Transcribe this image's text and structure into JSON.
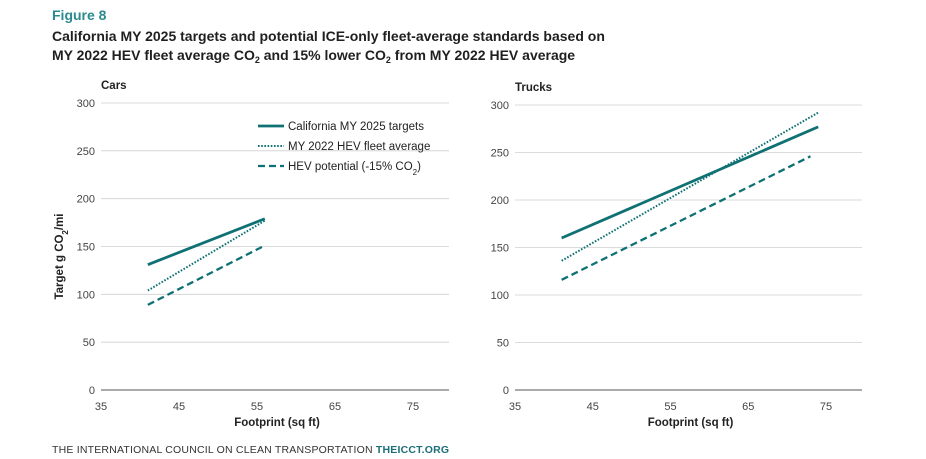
{
  "figure_label": "Figure 8",
  "title": {
    "line1": "California MY 2025 targets and potential ICE-only fleet-average standards based on",
    "line2_a": "MY 2022 HEV fleet average CO",
    "line2_sub1": "2",
    "line2_b": " and 15% lower CO",
    "line2_sub2": "2",
    "line2_c": " from MY 2022 HEV average"
  },
  "footer": {
    "org": "THE INTERNATIONAL COUNCIL ON CLEAN TRANSPORTATION",
    "site": "THEICCT.ORG"
  },
  "colors": {
    "series": "#0f7173",
    "grid": "#cfcfcf"
  },
  "chart_data": [
    {
      "type": "line",
      "title": "Cars",
      "xlabel": "Footprint (sq ft)",
      "ylabel": "Target g CO2/mi",
      "ylabel_parts": {
        "a": "Target g CO",
        "sub": "2",
        "b": "/mi"
      },
      "xlim": [
        35,
        80
      ],
      "ylim": [
        0,
        300
      ],
      "xticks": [
        35,
        45,
        55,
        65,
        75
      ],
      "yticks": [
        0,
        50,
        100,
        150,
        200,
        250,
        300
      ],
      "series": [
        {
          "name": "California MY 2025 targets",
          "style": "solid",
          "x": [
            41,
            56
          ],
          "y": [
            131,
            179
          ]
        },
        {
          "name": "MY 2022 HEV fleet average",
          "style": "dotted",
          "x": [
            41,
            56
          ],
          "y": [
            104,
            177
          ]
        },
        {
          "name": "HEV potential (-15% CO2)",
          "style": "dashed",
          "x": [
            41,
            56
          ],
          "y": [
            89,
            151
          ]
        }
      ],
      "legend": {
        "location": "top-right",
        "entries": [
          {
            "label": "California MY 2025 targets",
            "style": "solid"
          },
          {
            "label": "MY 2022 HEV fleet average",
            "style": "dotted"
          },
          {
            "label_a": "HEV potential (-15% CO",
            "label_sub": "2",
            "label_b": ")",
            "style": "dashed"
          }
        ]
      }
    },
    {
      "type": "line",
      "title": "Trucks",
      "xlabel": "Footprint (sq ft)",
      "ylabel": "",
      "xlim": [
        35,
        80
      ],
      "ylim": [
        0,
        300
      ],
      "xticks": [
        35,
        45,
        55,
        65,
        75
      ],
      "yticks": [
        0,
        50,
        100,
        150,
        200,
        250,
        300
      ],
      "series": [
        {
          "name": "California MY 2025 targets",
          "style": "solid",
          "x": [
            41,
            74
          ],
          "y": [
            160,
            277
          ]
        },
        {
          "name": "MY 2022 HEV fleet average",
          "style": "dotted",
          "x": [
            41,
            74
          ],
          "y": [
            136,
            292
          ]
        },
        {
          "name": "HEV potential (-15% CO2)",
          "style": "dashed",
          "x": [
            41,
            73
          ],
          "y": [
            116,
            246
          ]
        }
      ]
    }
  ]
}
